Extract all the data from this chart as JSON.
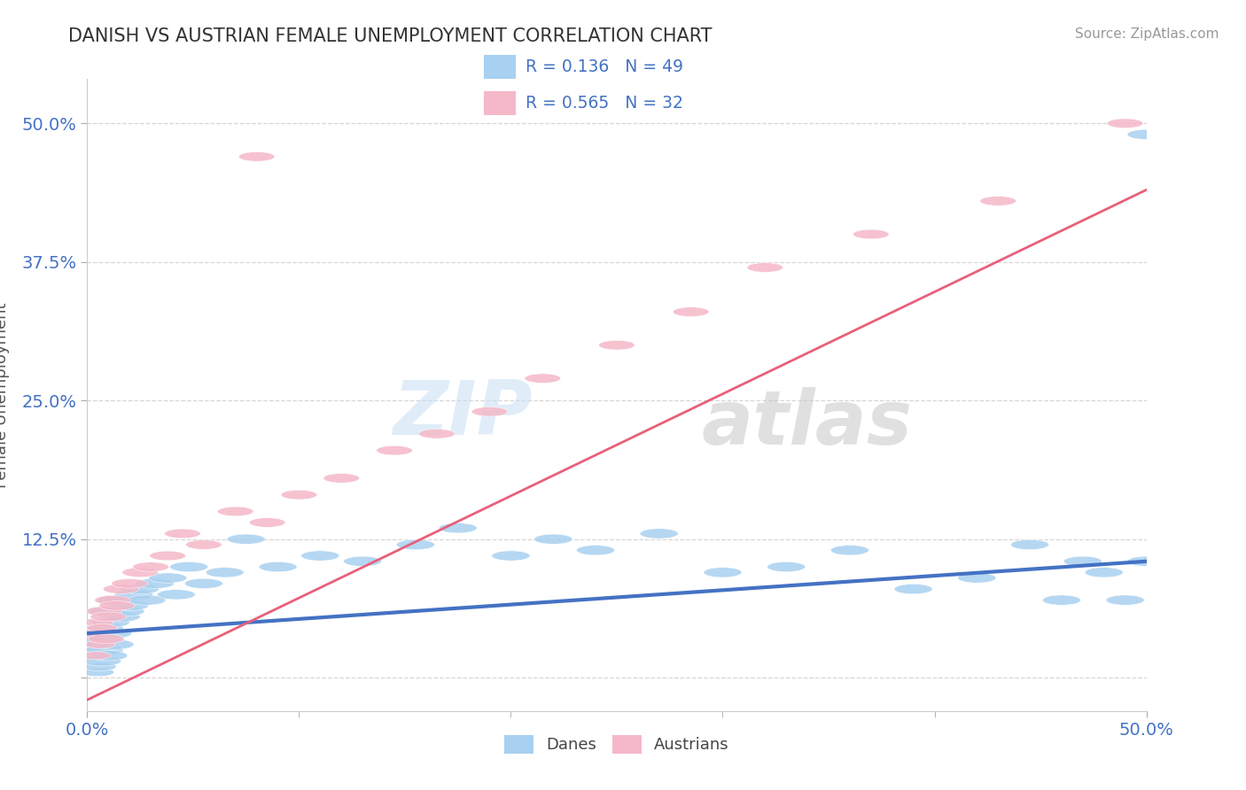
{
  "title": "DANISH VS AUSTRIAN FEMALE UNEMPLOYMENT CORRELATION CHART",
  "source": "Source: ZipAtlas.com",
  "ylabel": "Female Unemployment",
  "ytick_vals": [
    0.0,
    0.125,
    0.25,
    0.375,
    0.5
  ],
  "ytick_labels": [
    "",
    "12.5%",
    "25.0%",
    "37.5%",
    "50.0%"
  ],
  "xlim": [
    0.0,
    0.5
  ],
  "ylim": [
    -0.03,
    0.54
  ],
  "danes_R": 0.136,
  "danes_N": 49,
  "austrians_R": 0.565,
  "austrians_N": 32,
  "danes_color": "#a8d0f0",
  "austrians_color": "#f5b8c8",
  "danes_line_color": "#4472C4",
  "austrians_line_color": "#E8607A",
  "title_color": "#333333",
  "tick_label_color": "#4472C4",
  "ylabel_color": "#555555",
  "legend_text_color": "#4472C4",
  "background_color": "#ffffff",
  "grid_color": "#cccccc",
  "danes_line": [
    0.0,
    0.5,
    0.04,
    0.105
  ],
  "austrians_line": [
    0.0,
    0.5,
    -0.02,
    0.44
  ],
  "danes_x": [
    0.003,
    0.004,
    0.005,
    0.005,
    0.006,
    0.007,
    0.007,
    0.008,
    0.008,
    0.009,
    0.01,
    0.011,
    0.012,
    0.013,
    0.014,
    0.016,
    0.018,
    0.02,
    0.022,
    0.025,
    0.028,
    0.032,
    0.038,
    0.042,
    0.048,
    0.055,
    0.065,
    0.075,
    0.09,
    0.11,
    0.13,
    0.155,
    0.175,
    0.2,
    0.22,
    0.24,
    0.27,
    0.3,
    0.33,
    0.36,
    0.39,
    0.42,
    0.445,
    0.46,
    0.47,
    0.48,
    0.49,
    0.5,
    0.5
  ],
  "danes_y": [
    0.04,
    0.02,
    0.005,
    0.03,
    0.01,
    0.035,
    0.015,
    0.025,
    0.045,
    0.06,
    0.02,
    0.05,
    0.04,
    0.03,
    0.07,
    0.055,
    0.06,
    0.065,
    0.075,
    0.08,
    0.07,
    0.085,
    0.09,
    0.075,
    0.1,
    0.085,
    0.095,
    0.125,
    0.1,
    0.11,
    0.105,
    0.12,
    0.135,
    0.11,
    0.125,
    0.115,
    0.13,
    0.095,
    0.1,
    0.115,
    0.08,
    0.09,
    0.12,
    0.07,
    0.105,
    0.095,
    0.07,
    0.105,
    0.49
  ],
  "austrians_x": [
    0.003,
    0.004,
    0.005,
    0.006,
    0.007,
    0.008,
    0.009,
    0.01,
    0.012,
    0.014,
    0.016,
    0.02,
    0.025,
    0.03,
    0.038,
    0.045,
    0.055,
    0.07,
    0.085,
    0.1,
    0.12,
    0.145,
    0.165,
    0.19,
    0.215,
    0.25,
    0.285,
    0.08,
    0.32,
    0.37,
    0.43,
    0.49
  ],
  "austrians_y": [
    0.04,
    0.02,
    0.05,
    0.03,
    0.045,
    0.06,
    0.035,
    0.055,
    0.07,
    0.065,
    0.08,
    0.085,
    0.095,
    0.1,
    0.11,
    0.13,
    0.12,
    0.15,
    0.14,
    0.165,
    0.18,
    0.205,
    0.22,
    0.24,
    0.27,
    0.3,
    0.33,
    0.47,
    0.37,
    0.4,
    0.43,
    0.5
  ]
}
